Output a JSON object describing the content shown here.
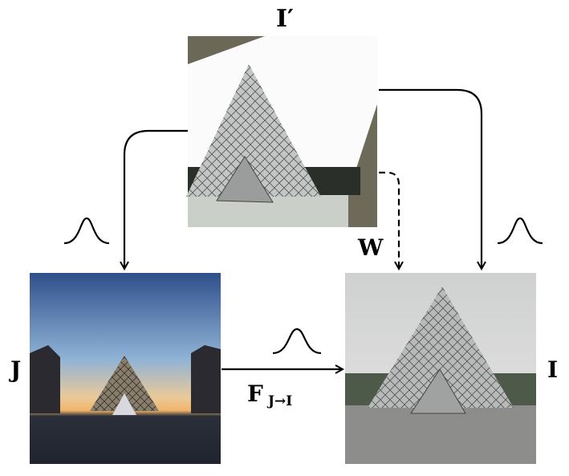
{
  "labels": {
    "warped": "I′",
    "source": "J",
    "target": "I",
    "warp": "W",
    "flow": "F",
    "flow_subscript": "J→I"
  }
}
